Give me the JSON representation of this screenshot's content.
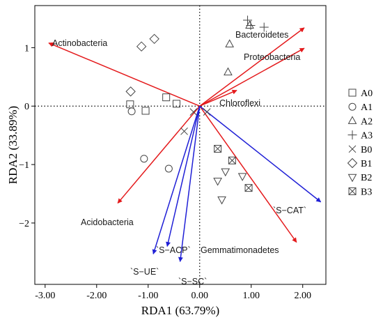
{
  "chart_data": {
    "type": "scatter",
    "title": "",
    "xlabel": "RDA1 (63.79%)",
    "ylabel": "RDA2 (33.89%)",
    "xlim": [
      -3.2,
      2.45
    ],
    "ylim": [
      -3.05,
      1.72
    ],
    "xticks": [
      -3.0,
      -2.0,
      -1.0,
      0.0,
      1.0,
      2.0
    ],
    "xtick_labels": [
      "-3.00",
      "-2.00",
      "-1.00",
      "0.00",
      "1.00",
      "2.00"
    ],
    "yticks": [
      -2,
      -1,
      0,
      1
    ],
    "ytick_labels": [
      "−2",
      "−1",
      "0",
      "1"
    ],
    "grid": false,
    "reference_lines": {
      "x": 0,
      "y": 0,
      "style": "dotted"
    },
    "legend_position": "right",
    "series": [
      {
        "name": "A0",
        "marker": "square",
        "points": [
          [
            -1.35,
            0.03
          ],
          [
            -1.05,
            -0.08
          ],
          [
            -0.65,
            0.15
          ],
          [
            -0.45,
            0.04
          ]
        ]
      },
      {
        "name": "A1",
        "marker": "circle",
        "points": [
          [
            -1.32,
            -0.09
          ],
          [
            -1.08,
            -0.9
          ],
          [
            -0.6,
            -1.07
          ]
        ]
      },
      {
        "name": "A2",
        "marker": "triangle-up",
        "points": [
          [
            0.58,
            1.06
          ],
          [
            0.55,
            0.58
          ],
          [
            0.97,
            1.38
          ]
        ]
      },
      {
        "name": "A3",
        "marker": "plus",
        "points": [
          [
            0.93,
            1.47
          ],
          [
            0.99,
            1.38
          ],
          [
            1.25,
            1.35
          ]
        ]
      },
      {
        "name": "B0",
        "marker": "x",
        "points": [
          [
            -0.3,
            -0.43
          ],
          [
            -0.12,
            -0.1
          ],
          [
            0.14,
            -0.1
          ]
        ]
      },
      {
        "name": "B1",
        "marker": "diamond",
        "points": [
          [
            -1.13,
            1.02
          ],
          [
            -0.88,
            1.15
          ],
          [
            -1.34,
            0.25
          ]
        ]
      },
      {
        "name": "B2",
        "marker": "triangle-down",
        "points": [
          [
            0.5,
            -1.12
          ],
          [
            0.35,
            -1.28
          ],
          [
            0.83,
            -1.2
          ],
          [
            0.43,
            -1.6
          ]
        ]
      },
      {
        "name": "B3",
        "marker": "boxed-x",
        "points": [
          [
            0.35,
            -0.73
          ],
          [
            0.63,
            -0.93
          ],
          [
            0.95,
            -1.4
          ]
        ]
      }
    ],
    "vectors": [
      {
        "label": "Actinobacteria",
        "color": "#e41a1c",
        "x": -2.93,
        "y": 1.08
      },
      {
        "label": "Bacteroidetes",
        "color": "#e41a1c",
        "x": 2.03,
        "y": 1.34
      },
      {
        "label": "Proteobacteria",
        "color": "#e41a1c",
        "x": 2.03,
        "y": 0.99
      },
      {
        "label": "Chloroflexi",
        "color": "#e41a1c",
        "x": 0.72,
        "y": 0.27
      },
      {
        "label": "Acidobacteria",
        "color": "#e41a1c",
        "x": -1.59,
        "y": -1.66
      },
      {
        "label": "Gemmatimonadetes",
        "color": "#e41a1c",
        "x": 1.88,
        "y": -2.33
      },
      {
        "label": "`S−CAT`",
        "color": "#1f1fd6",
        "x": 2.35,
        "y": -1.64
      },
      {
        "label": "`S−ACP`",
        "color": "#1f1fd6",
        "x": -0.63,
        "y": -2.4
      },
      {
        "label": "`S−UE`",
        "color": "#1f1fd6",
        "x": -0.9,
        "y": -2.53
      },
      {
        "label": "`S−SC`",
        "color": "#1f1fd6",
        "x": -0.38,
        "y": -2.66
      }
    ]
  }
}
